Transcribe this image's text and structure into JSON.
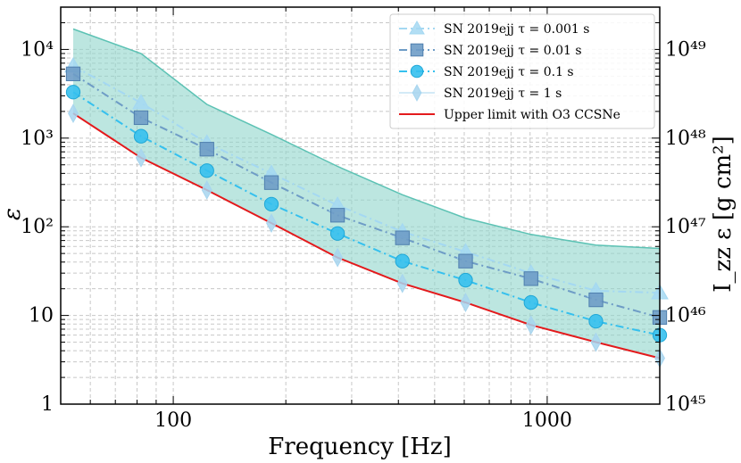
{
  "chart_data": {
    "type": "line",
    "title": "",
    "xlabel": "Frequency [Hz]",
    "ylabel": "ε",
    "ylabel_right": "I_zz ε [g cm²]",
    "xscale": "log",
    "yscale": "log",
    "xlim": [
      50,
      2000
    ],
    "ylim": [
      1,
      30000
    ],
    "grid": true,
    "x_ticks": [
      {
        "value": 100,
        "label": "100"
      },
      {
        "value": 1000,
        "label": "1000"
      }
    ],
    "y_ticks": [
      {
        "value": 1,
        "label": "1"
      },
      {
        "value": 10,
        "label": "10"
      },
      {
        "value": 100,
        "label": "10²"
      },
      {
        "value": 1000,
        "label": "10³"
      },
      {
        "value": 10000,
        "label": "10⁴"
      }
    ],
    "y_ticks_right": [
      {
        "value": 1,
        "label": "10⁴⁵"
      },
      {
        "value": 10,
        "label": "10⁴⁶"
      },
      {
        "value": 100,
        "label": "10⁴⁷"
      },
      {
        "value": 1000,
        "label": "10⁴⁸"
      },
      {
        "value": 10000,
        "label": "10⁴⁹"
      }
    ],
    "x": [
      54,
      82,
      123,
      183,
      275,
      410,
      605,
      905,
      1350,
      2000
    ],
    "band": {
      "name": "range",
      "upper": [
        17000,
        9000,
        2400,
        1100,
        480,
        230,
        125,
        82,
        62,
        57
      ],
      "lower": [
        1900,
        600,
        260,
        110,
        45,
        23,
        14,
        7.8,
        5.0,
        3.3
      ],
      "color": "#8fd6cc"
    },
    "series": [
      {
        "name": "SN 2019ejj τ = 0.001 s",
        "marker": "triangle",
        "linestyle": "dashdot",
        "color": "#a4d8f2",
        "values": [
          6500,
          2500,
          880,
          400,
          175,
          88,
          52,
          30,
          19,
          18
        ]
      },
      {
        "name": "SN 2019ejj τ = 0.01 s",
        "marker": "square",
        "linestyle": "dashdot",
        "color": "#6e9cc6",
        "values": [
          5300,
          1700,
          750,
          315,
          135,
          75,
          41,
          26,
          15,
          9.5
        ]
      },
      {
        "name": "SN 2019ejj τ = 0.1 s",
        "marker": "circle",
        "linestyle": "dashdot",
        "color": "#35c0ee",
        "values": [
          3300,
          1050,
          430,
          180,
          84,
          41,
          25,
          14,
          8.6,
          6.0
        ]
      },
      {
        "name": "SN 2019ejj τ = 1 s",
        "marker": "diamond",
        "linestyle": "none",
        "color": "#a7d5ef",
        "values": [
          1900,
          600,
          260,
          110,
          45,
          23,
          14,
          7.8,
          5.0,
          3.3
        ]
      },
      {
        "name": "Upper limit with O3 CCSNe",
        "marker": "none",
        "linestyle": "solid",
        "color": "#e31a1c",
        "values": [
          1900,
          600,
          260,
          110,
          45,
          23,
          14,
          7.8,
          5.0,
          3.3
        ]
      }
    ],
    "legend_position": "top-right"
  }
}
